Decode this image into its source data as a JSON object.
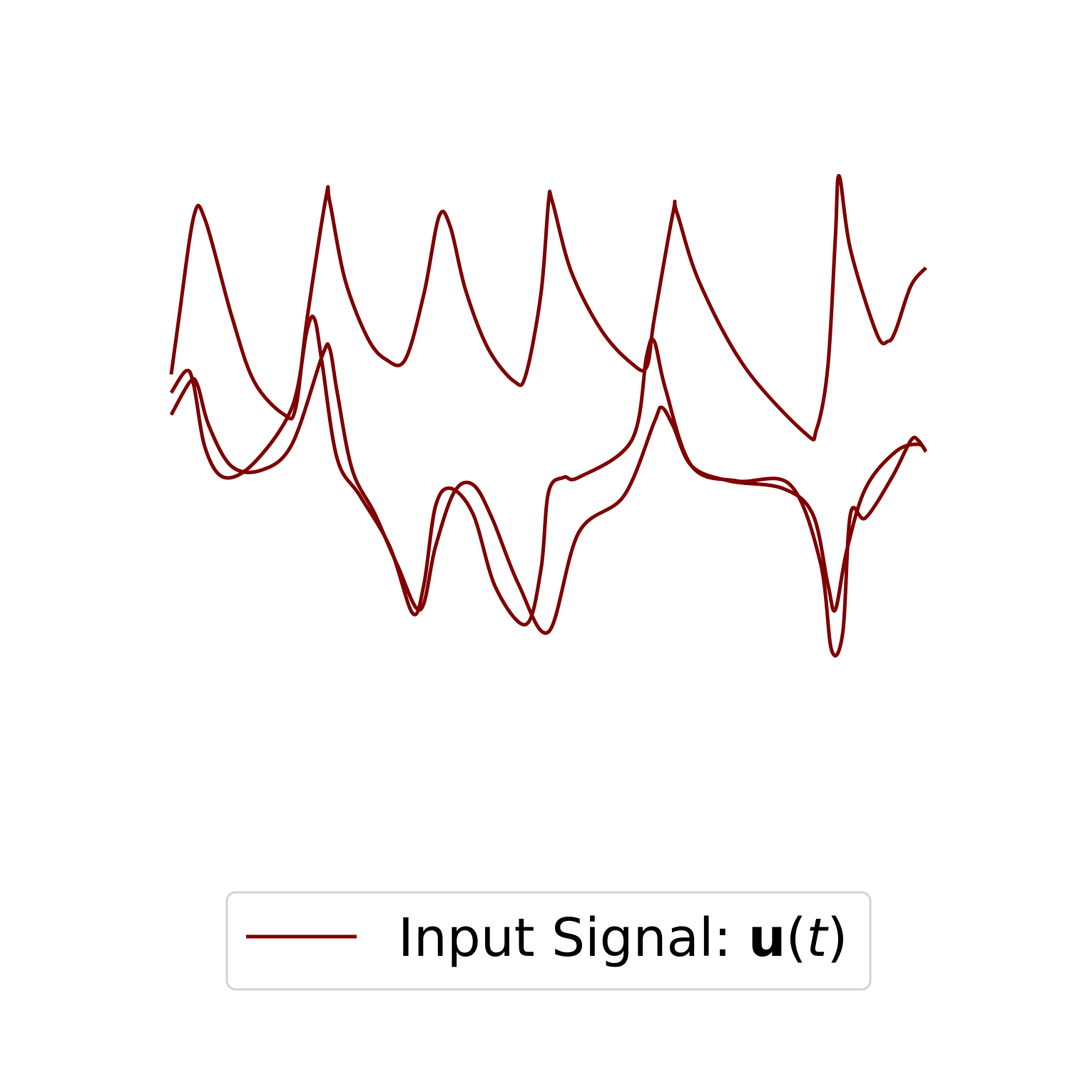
{
  "chart_data": {
    "type": "line",
    "title": "",
    "xlabel": "",
    "ylabel": "",
    "axes_visible": false,
    "grid": false,
    "legend_position": "bottom-center",
    "color": "#800000",
    "legend": {
      "label_prefix": "Input Signal: ",
      "label_symbol": "u",
      "label_open": "(",
      "label_var": "t",
      "label_close": ")"
    },
    "x_range": [
      0,
      1
    ],
    "y_range": [
      -1,
      1
    ],
    "series": [
      {
        "x": [
          0.0,
          0.01,
          0.03,
          0.045,
          0.08,
          0.11,
          0.15,
          0.165,
          0.18,
          0.205,
          0.21,
          0.23,
          0.26,
          0.285,
          0.31,
          0.335,
          0.355,
          0.37,
          0.39,
          0.42,
          0.455,
          0.47,
          0.49,
          0.5,
          0.505,
          0.53,
          0.57,
          0.61,
          0.63,
          0.64,
          0.665,
          0.67,
          0.7,
          0.76,
          0.84,
          0.855,
          0.87,
          0.88,
          0.885,
          0.9,
          0.935,
          0.95,
          0.96,
          0.98,
          1.0
        ],
        "y": [
          0.43,
          0.58,
          0.86,
          0.85,
          0.59,
          0.41,
          0.32,
          0.34,
          0.58,
          0.91,
          0.9,
          0.69,
          0.53,
          0.47,
          0.47,
          0.65,
          0.86,
          0.83,
          0.66,
          0.5,
          0.41,
          0.43,
          0.65,
          0.9,
          0.9,
          0.71,
          0.55,
          0.46,
          0.45,
          0.58,
          0.87,
          0.87,
          0.68,
          0.45,
          0.27,
          0.28,
          0.45,
          0.8,
          0.97,
          0.77,
          0.54,
          0.52,
          0.55,
          0.67,
          0.72
        ]
      },
      {
        "x": [
          0.0,
          0.02,
          0.03,
          0.045,
          0.07,
          0.11,
          0.16,
          0.18,
          0.19,
          0.2,
          0.22,
          0.25,
          0.29,
          0.32,
          0.335,
          0.35,
          0.37,
          0.4,
          0.43,
          0.47,
          0.49,
          0.5,
          0.52,
          0.54,
          0.61,
          0.63,
          0.64,
          0.655,
          0.69,
          0.75,
          0.82,
          0.86,
          0.875,
          0.89,
          0.9,
          0.92,
          0.955,
          0.98,
          0.99,
          1.0
        ],
        "y": [
          0.38,
          0.44,
          0.4,
          0.23,
          0.15,
          0.19,
          0.34,
          0.55,
          0.58,
          0.46,
          0.2,
          0.1,
          -0.04,
          -0.22,
          -0.14,
          0.07,
          0.12,
          0.05,
          -0.15,
          -0.25,
          -0.1,
          0.11,
          0.15,
          0.15,
          0.25,
          0.48,
          0.52,
          0.39,
          0.18,
          0.14,
          0.13,
          -0.08,
          -0.32,
          -0.27,
          0.05,
          0.04,
          0.15,
          0.25,
          0.25,
          0.22
        ]
      },
      {
        "x": [
          0.0,
          0.025,
          0.035,
          0.05,
          0.08,
          0.12,
          0.16,
          0.2,
          0.21,
          0.22,
          0.24,
          0.27,
          0.3,
          0.33,
          0.35,
          0.375,
          0.4,
          0.425,
          0.46,
          0.5,
          0.54,
          0.6,
          0.64,
          0.65,
          0.665,
          0.69,
          0.74,
          0.81,
          0.85,
          0.87,
          0.88,
          0.895,
          0.92,
          0.96,
          0.99,
          1.0
        ],
        "y": [
          0.32,
          0.41,
          0.4,
          0.29,
          0.18,
          0.17,
          0.24,
          0.48,
          0.5,
          0.38,
          0.17,
          0.05,
          -0.09,
          -0.21,
          -0.04,
          0.11,
          0.13,
          0.04,
          -0.14,
          -0.27,
          0.0,
          0.1,
          0.3,
          0.34,
          0.29,
          0.18,
          0.14,
          0.12,
          0.05,
          -0.14,
          -0.21,
          -0.05,
          0.12,
          0.22,
          0.24,
          0.22
        ]
      }
    ]
  }
}
